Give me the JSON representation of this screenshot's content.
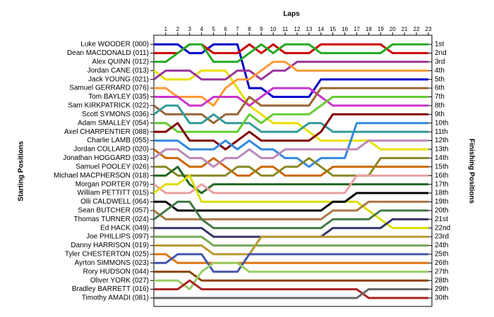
{
  "chart_data": {
    "type": "line",
    "xlabel": "Laps",
    "ylabel": "Starting Positions",
    "y2label": "Finishing Positions",
    "x": [
      0,
      1,
      2,
      3,
      4,
      5,
      6,
      7,
      8,
      9,
      10,
      11,
      12,
      13,
      14,
      15,
      16,
      17,
      18,
      19,
      20,
      21,
      22,
      23
    ],
    "xlim": [
      0,
      23
    ],
    "xticks": [
      1,
      2,
      3,
      4,
      5,
      6,
      7,
      8,
      9,
      10,
      11,
      12,
      13,
      14,
      15,
      16,
      17,
      18,
      19,
      20,
      21,
      22,
      23
    ],
    "ylim": [
      1,
      30
    ],
    "y2lim": [
      1,
      30
    ],
    "y_inverted": true,
    "line_width": 3,
    "yticks": [
      {
        "value": 1,
        "label": "Luke WOODER (000)"
      },
      {
        "value": 2,
        "label": "Dean MACDONALD (011)"
      },
      {
        "value": 3,
        "label": "Alex QUINN (012)"
      },
      {
        "value": 4,
        "label": "Jordan CANE (013)"
      },
      {
        "value": 5,
        "label": "Jack YOUNG (021)"
      },
      {
        "value": 6,
        "label": "Samuel GERRARD (076)"
      },
      {
        "value": 7,
        "label": "Tom BAYLEY (035)"
      },
      {
        "value": 8,
        "label": "Sam KIRKPATRICK (022)"
      },
      {
        "value": 9,
        "label": "Scott SYMONS (036)"
      },
      {
        "value": 10,
        "label": "Adam SMALLEY (054)"
      },
      {
        "value": 11,
        "label": "Axel CHARPENTIER (088)"
      },
      {
        "value": 12,
        "label": "Charlie LAMB (055)"
      },
      {
        "value": 13,
        "label": "Jordan COLLARD (020)"
      },
      {
        "value": 14,
        "label": "Jonathan HOGGARD (033)"
      },
      {
        "value": 15,
        "label": "Samuel POOLEY (026)"
      },
      {
        "value": 16,
        "label": "Michael MACPHERSON (018)"
      },
      {
        "value": 17,
        "label": "Morgan PORTER (079)"
      },
      {
        "value": 18,
        "label": "William PETTITT (015)"
      },
      {
        "value": 19,
        "label": "Olli CALDWELL (064)"
      },
      {
        "value": 20,
        "label": "Sean BUTCHER (057)"
      },
      {
        "value": 21,
        "label": "Thomas TURNER (024)"
      },
      {
        "value": 22,
        "label": "Ed HACK (049)"
      },
      {
        "value": 23,
        "label": "Joe PHILLIPS (097)"
      },
      {
        "value": 24,
        "label": "Danny HARRISON (019)"
      },
      {
        "value": 25,
        "label": "Tyler CHESTERTON (025)"
      },
      {
        "value": 26,
        "label": "Ayrton SIMMONS (023)"
      },
      {
        "value": 27,
        "label": "Rory HUDSON (044)"
      },
      {
        "value": 28,
        "label": "Oliver YORK (027)"
      },
      {
        "value": 29,
        "label": "Bradley BARRETT (016)"
      },
      {
        "value": 30,
        "label": "Timothy AMADI (081)"
      }
    ],
    "y2ticks": [
      {
        "value": 1,
        "label": "1st"
      },
      {
        "value": 2,
        "label": "2nd"
      },
      {
        "value": 3,
        "label": "3rd"
      },
      {
        "value": 4,
        "label": "4th"
      },
      {
        "value": 5,
        "label": "5th"
      },
      {
        "value": 6,
        "label": "6th"
      },
      {
        "value": 7,
        "label": "7th"
      },
      {
        "value": 8,
        "label": "8th"
      },
      {
        "value": 9,
        "label": "9th"
      },
      {
        "value": 10,
        "label": "10th"
      },
      {
        "value": 11,
        "label": "11th"
      },
      {
        "value": 12,
        "label": "12th"
      },
      {
        "value": 13,
        "label": "13th"
      },
      {
        "value": 14,
        "label": "14th"
      },
      {
        "value": 15,
        "label": "15th"
      },
      {
        "value": 16,
        "label": "16th"
      },
      {
        "value": 17,
        "label": "17th"
      },
      {
        "value": 18,
        "label": "18th"
      },
      {
        "value": 19,
        "label": "19th"
      },
      {
        "value": 20,
        "label": "20th"
      },
      {
        "value": 21,
        "label": "21st"
      },
      {
        "value": 22,
        "label": "22nd"
      },
      {
        "value": 23,
        "label": "23rd"
      },
      {
        "value": 24,
        "label": "24th"
      },
      {
        "value": 25,
        "label": "25th"
      },
      {
        "value": 26,
        "label": "26th"
      },
      {
        "value": 27,
        "label": "27th"
      },
      {
        "value": 28,
        "label": "28th"
      },
      {
        "value": 29,
        "label": "29th"
      },
      {
        "value": 30,
        "label": "30th"
      }
    ],
    "series": [
      {
        "color": "#0000cc",
        "values": [
          1,
          1,
          1,
          2,
          2,
          1,
          1,
          1,
          6,
          6,
          7,
          7,
          7,
          7,
          5,
          5,
          5,
          5,
          5,
          5,
          5,
          5,
          5,
          5
        ]
      },
      {
        "color": "#cc0000",
        "values": [
          2,
          2,
          2,
          1,
          1,
          2,
          2,
          2,
          1,
          2,
          1,
          2,
          2,
          2,
          1,
          1,
          1,
          1,
          1,
          1,
          2,
          2,
          2,
          2
        ]
      },
      {
        "color": "#22aa22",
        "values": [
          3,
          3,
          2,
          1,
          1,
          3,
          3,
          3,
          2,
          1,
          2,
          1,
          1,
          1,
          2,
          2,
          2,
          2,
          2,
          2,
          1,
          1,
          1,
          1
        ]
      },
      {
        "color": "#e8e000",
        "values": [
          4,
          5,
          5,
          5,
          4,
          4,
          4,
          6,
          8,
          9,
          10,
          10,
          10,
          11,
          12,
          12,
          12,
          12,
          12,
          13,
          13,
          13,
          13,
          13
        ]
      },
      {
        "color": "#993399",
        "values": [
          5,
          4,
          4,
          4,
          5,
          5,
          5,
          4,
          4,
          5,
          4,
          4,
          3,
          3,
          3,
          3,
          3,
          3,
          3,
          3,
          3,
          3,
          3,
          3
        ]
      },
      {
        "color": "#ff9933",
        "values": [
          6,
          6,
          7,
          7,
          7,
          8,
          6,
          5,
          5,
          4,
          3,
          3,
          4,
          4,
          4,
          4,
          4,
          4,
          4,
          4,
          4,
          4,
          4,
          4
        ]
      },
      {
        "color": "#cc33cc",
        "values": [
          7,
          7,
          7,
          8,
          8,
          7,
          7,
          7,
          8,
          7,
          6,
          6,
          6,
          6,
          7,
          8,
          8,
          8,
          8,
          8,
          8,
          8,
          8,
          8
        ]
      },
      {
        "color": "#996633",
        "values": [
          8,
          9,
          9,
          9,
          9,
          10,
          9,
          9,
          7,
          8,
          8,
          8,
          8,
          8,
          6,
          6,
          6,
          6,
          6,
          6,
          6,
          6,
          6,
          6
        ]
      },
      {
        "color": "#339999",
        "values": [
          9,
          8,
          8,
          10,
          10,
          9,
          10,
          10,
          10,
          11,
          11,
          11,
          11,
          10,
          10,
          11,
          11,
          11,
          11,
          11,
          11,
          11,
          11,
          11
        ]
      },
      {
        "color": "#66cc33",
        "values": [
          10,
          10,
          11,
          11,
          11,
          11,
          11,
          11,
          9,
          10,
          9,
          9,
          9,
          9,
          8,
          7,
          7,
          7,
          7,
          7,
          7,
          7,
          7,
          7
        ]
      },
      {
        "color": "#800000",
        "values": [
          11,
          11,
          10,
          12,
          12,
          12,
          13,
          12,
          11,
          12,
          12,
          12,
          12,
          12,
          11,
          9,
          9,
          9,
          9,
          9,
          9,
          9,
          9,
          9
        ]
      },
      {
        "color": "#3388dd",
        "values": [
          12,
          12,
          12,
          13,
          13,
          13,
          12,
          13,
          12,
          13,
          13,
          14,
          14,
          15,
          14,
          14,
          14,
          10,
          10,
          10,
          10,
          10,
          10,
          10
        ]
      },
      {
        "color": "#cc6600",
        "values": [
          13,
          14,
          14,
          15,
          15,
          14,
          15,
          16,
          16,
          15,
          15,
          16,
          16,
          16,
          16,
          15,
          15,
          15,
          15,
          15,
          15,
          15,
          15,
          15
        ]
      },
      {
        "color": "#bb88bb",
        "values": [
          14,
          13,
          13,
          14,
          14,
          15,
          14,
          14,
          13,
          14,
          14,
          13,
          13,
          13,
          13,
          13,
          13,
          13,
          12,
          12,
          12,
          12,
          12,
          12
        ]
      },
      {
        "color": "#888822",
        "values": [
          15,
          15,
          16,
          16,
          16,
          16,
          16,
          15,
          15,
          16,
          16,
          15,
          15,
          14,
          15,
          16,
          16,
          16,
          16,
          14,
          14,
          14,
          14,
          14
        ]
      },
      {
        "color": "#226622",
        "values": [
          16,
          16,
          15,
          17,
          18,
          17,
          17,
          17,
          17,
          17,
          17,
          17,
          17,
          17,
          17,
          17,
          17,
          17,
          17,
          17,
          17,
          17,
          17,
          17
        ]
      },
      {
        "color": "#e8a0a0",
        "values": [
          17,
          18,
          18,
          18,
          17,
          18,
          18,
          18,
          18,
          18,
          18,
          18,
          18,
          18,
          18,
          18,
          18,
          16,
          16,
          16,
          16,
          16,
          16,
          16
        ]
      },
      {
        "color": "#dddd00",
        "values": [
          18,
          17,
          17,
          16,
          19,
          19,
          19,
          19,
          19,
          19,
          19,
          19,
          19,
          19,
          19,
          19,
          19,
          19,
          20,
          21,
          22,
          22,
          22,
          22
        ]
      },
      {
        "color": "#000000",
        "values": [
          19,
          19,
          20,
          20,
          20,
          20,
          20,
          20,
          20,
          20,
          20,
          20,
          20,
          20,
          20,
          19,
          19,
          18,
          18,
          18,
          18,
          18,
          18,
          18
        ]
      },
      {
        "color": "#aa7744",
        "values": [
          20,
          21,
          21,
          21,
          21,
          21,
          21,
          21,
          21,
          21,
          21,
          21,
          21,
          21,
          21,
          20,
          20,
          20,
          19,
          19,
          19,
          19,
          19,
          19
        ]
      },
      {
        "color": "#447744",
        "values": [
          21,
          20,
          19,
          19,
          21,
          22,
          22,
          22,
          22,
          22,
          22,
          22,
          22,
          22,
          22,
          21,
          21,
          21,
          21,
          20,
          20,
          20,
          20,
          20
        ]
      },
      {
        "color": "#333366",
        "values": [
          22,
          22,
          22,
          22,
          22,
          23,
          23,
          23,
          23,
          23,
          23,
          23,
          23,
          23,
          23,
          22,
          22,
          22,
          22,
          22,
          21,
          21,
          21,
          21
        ]
      },
      {
        "color": "#77aa55",
        "values": [
          23,
          23,
          23,
          23,
          23,
          24,
          24,
          24,
          24,
          24,
          24,
          24,
          24,
          24,
          24,
          24,
          24,
          24,
          24,
          24,
          24,
          24,
          24,
          24
        ]
      },
      {
        "color": "#bb9933",
        "values": [
          24,
          24,
          24,
          24,
          24,
          25,
          25,
          25,
          25,
          23,
          23,
          23,
          23,
          23,
          23,
          23,
          23,
          23,
          23,
          23,
          23,
          23,
          23,
          23
        ]
      },
      {
        "color": "#dd7711",
        "values": [
          25,
          25,
          26,
          26,
          26,
          26,
          26,
          26,
          26,
          26,
          26,
          26,
          26,
          26,
          26,
          26,
          26,
          26,
          26,
          26,
          26,
          26,
          26,
          26
        ]
      },
      {
        "color": "#4455aa",
        "values": [
          26,
          26,
          25,
          25,
          25,
          27,
          27,
          27,
          25,
          25,
          25,
          25,
          25,
          25,
          25,
          25,
          25,
          25,
          25,
          25,
          25,
          25,
          25,
          25
        ]
      },
      {
        "color": "#884400",
        "values": [
          27,
          27,
          27,
          27,
          28,
          28,
          28,
          28,
          28,
          28,
          28,
          28,
          28,
          28,
          28,
          28,
          28,
          28,
          28,
          28,
          28,
          28,
          28,
          28
        ]
      },
      {
        "color": "#99cc66",
        "values": [
          28,
          28,
          28,
          29,
          27,
          26,
          26,
          26,
          27,
          27,
          27,
          27,
          27,
          27,
          27,
          27,
          27,
          27,
          27,
          27,
          27,
          27,
          27,
          27
        ]
      },
      {
        "color": "#aa2222",
        "values": [
          29,
          29,
          29,
          28,
          29,
          29,
          29,
          29,
          29,
          29,
          29,
          29,
          29,
          29,
          29,
          29,
          29,
          29,
          30,
          30,
          30,
          30,
          30,
          30
        ]
      },
      {
        "color": "#666666",
        "values": [
          30,
          30,
          30,
          30,
          30,
          30,
          30,
          30,
          30,
          30,
          30,
          30,
          30,
          30,
          30,
          30,
          30,
          30,
          29,
          29,
          29,
          29,
          29,
          29
        ]
      }
    ]
  }
}
